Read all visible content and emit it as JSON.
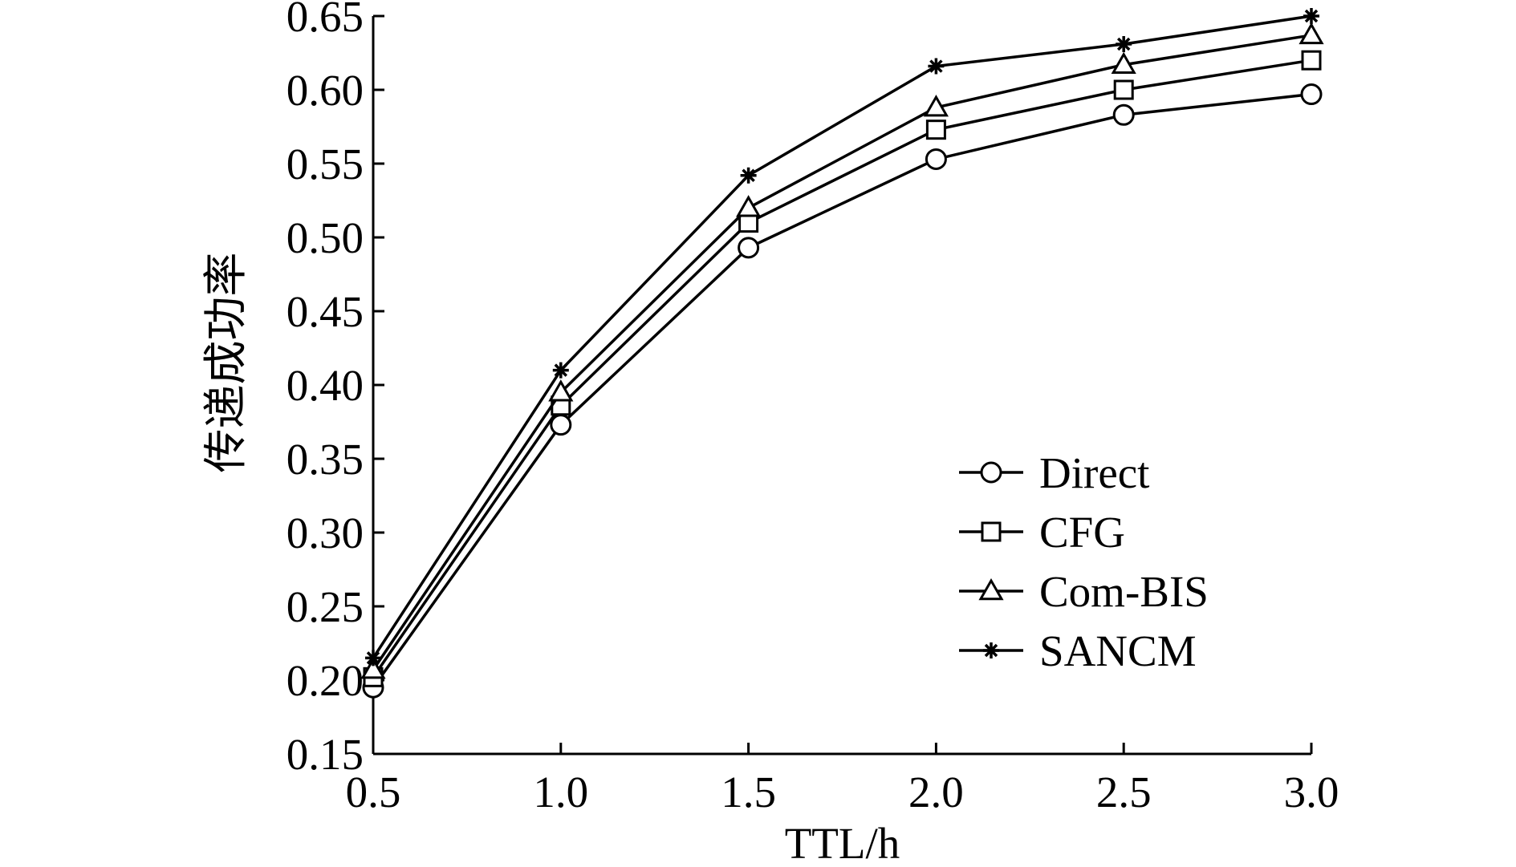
{
  "chart_data": {
    "type": "line",
    "xlabel": "TTL/h",
    "ylabel": "传递成功率",
    "x": [
      0.5,
      1.0,
      1.5,
      2.0,
      2.5,
      3.0
    ],
    "x_tick_labels": [
      "0.5",
      "1.0",
      "1.5",
      "2.0",
      "2.5",
      "3.0"
    ],
    "xlim": [
      0.5,
      3.0
    ],
    "ylim": [
      0.15,
      0.65
    ],
    "y_ticks": [
      0.15,
      0.2,
      0.25,
      0.3,
      0.35,
      0.4,
      0.45,
      0.5,
      0.55,
      0.6,
      0.65
    ],
    "y_tick_labels": [
      "0.15",
      "0.20",
      "0.25",
      "0.30",
      "0.35",
      "0.40",
      "0.45",
      "0.50",
      "0.55",
      "0.60",
      "0.65"
    ],
    "grid": false,
    "legend_position": "bottom-right",
    "series": [
      {
        "name": "Direct",
        "marker": "circle",
        "values": [
          0.195,
          0.373,
          0.493,
          0.553,
          0.583,
          0.597
        ]
      },
      {
        "name": "CFG",
        "marker": "square",
        "values": [
          0.202,
          0.386,
          0.51,
          0.573,
          0.6,
          0.62
        ]
      },
      {
        "name": "Com-BIS",
        "marker": "triangle",
        "values": [
          0.207,
          0.395,
          0.52,
          0.588,
          0.617,
          0.637
        ]
      },
      {
        "name": "SANCM",
        "marker": "star",
        "values": [
          0.215,
          0.41,
          0.542,
          0.616,
          0.631,
          0.65
        ]
      }
    ],
    "colors": {
      "line": "#000000",
      "background": "#ffffff"
    }
  }
}
